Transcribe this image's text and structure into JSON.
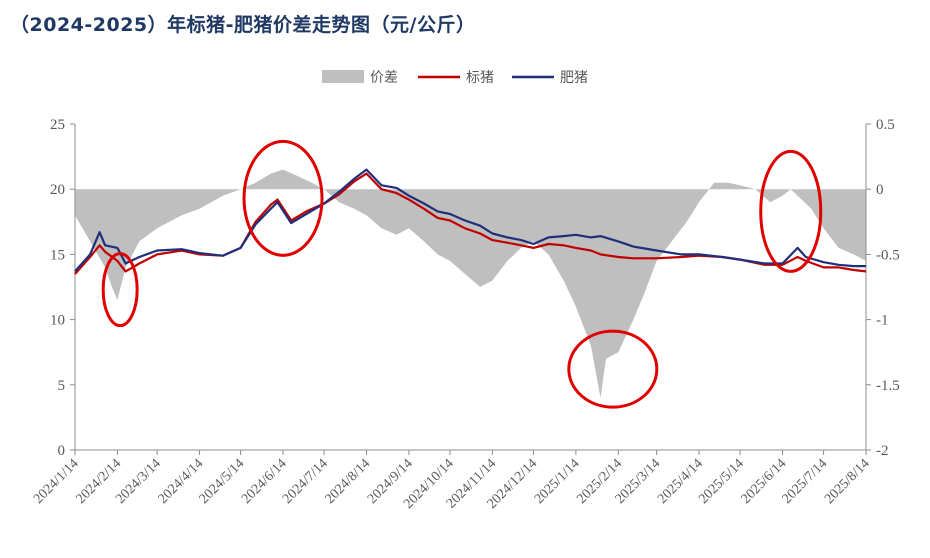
{
  "chart_data": {
    "type": "line",
    "title": "（2024-2025）年标猪-肥猪价差走势图（元/公斤）",
    "colors": {
      "price_diff": "#bfbfbf",
      "standard_pig": "#c00000",
      "fat_pig": "#1f2f7a",
      "highlight": "#e00000"
    },
    "legend": {
      "position": "top-center",
      "items": [
        "价差",
        "标猪",
        "肥猪"
      ]
    },
    "y_left": {
      "range": [
        0,
        25
      ],
      "ticks": [
        "0",
        "5",
        "10",
        "15",
        "20",
        "25"
      ]
    },
    "y_right": {
      "range": [
        -2,
        0.5
      ],
      "ticks": [
        "-2",
        "-1.5",
        "-1",
        "-0.5",
        "0",
        "0.5"
      ]
    },
    "x_ticks": [
      "2024/1/14",
      "2024/2/14",
      "2024/3/14",
      "2024/4/14",
      "2024/5/14",
      "2024/6/14",
      "2024/7/14",
      "2024/8/14",
      "2024/9/14",
      "2024/10/14",
      "2024/11/14",
      "2024/12/14",
      "2025/1/14",
      "2025/2/14",
      "2025/3/14",
      "2025/4/14",
      "2025/5/14",
      "2025/6/14",
      "2025/7/14",
      "2025/8/14"
    ],
    "series": [
      {
        "name": "价差",
        "axis": "right",
        "style": "area",
        "points": [
          [
            "2024/1/14",
            -0.2
          ],
          [
            "2024/1/25",
            -0.4
          ],
          [
            "2024/2/5",
            -0.6
          ],
          [
            "2024/2/10",
            -0.75
          ],
          [
            "2024/2/14",
            -0.85
          ],
          [
            "2024/2/20",
            -0.6
          ],
          [
            "2024/3/1",
            -0.4
          ],
          [
            "2024/3/14",
            -0.3
          ],
          [
            "2024/4/1",
            -0.2
          ],
          [
            "2024/4/14",
            -0.15
          ],
          [
            "2024/5/1",
            -0.05
          ],
          [
            "2024/5/14",
            0.0
          ],
          [
            "2024/5/25",
            0.05
          ],
          [
            "2024/6/5",
            0.12
          ],
          [
            "2024/6/14",
            0.15
          ],
          [
            "2024/6/25",
            0.1
          ],
          [
            "2024/7/5",
            0.05
          ],
          [
            "2024/7/14",
            0.0
          ],
          [
            "2024/7/25",
            -0.1
          ],
          [
            "2024/8/5",
            -0.15
          ],
          [
            "2024/8/14",
            -0.2
          ],
          [
            "2024/8/25",
            -0.3
          ],
          [
            "2024/9/5",
            -0.35
          ],
          [
            "2024/9/14",
            -0.3
          ],
          [
            "2024/9/25",
            -0.4
          ],
          [
            "2024/10/5",
            -0.5
          ],
          [
            "2024/10/14",
            -0.55
          ],
          [
            "2024/10/25",
            -0.65
          ],
          [
            "2024/11/5",
            -0.75
          ],
          [
            "2024/11/14",
            -0.7
          ],
          [
            "2024/11/25",
            -0.55
          ],
          [
            "2024/12/5",
            -0.45
          ],
          [
            "2024/12/14",
            -0.4
          ],
          [
            "2024/12/25",
            -0.5
          ],
          [
            "2025/1/5",
            -0.7
          ],
          [
            "2025/1/14",
            -0.9
          ],
          [
            "2025/1/25",
            -1.2
          ],
          [
            "2025/2/1",
            -1.6
          ],
          [
            "2025/2/5",
            -1.3
          ],
          [
            "2025/2/14",
            -1.25
          ],
          [
            "2025/2/25",
            -1.0
          ],
          [
            "2025/3/5",
            -0.8
          ],
          [
            "2025/3/14",
            -0.55
          ],
          [
            "2025/3/25",
            -0.4
          ],
          [
            "2025/4/5",
            -0.25
          ],
          [
            "2025/4/14",
            -0.1
          ],
          [
            "2025/4/25",
            0.05
          ],
          [
            "2025/5/5",
            0.05
          ],
          [
            "2025/5/14",
            0.03
          ],
          [
            "2025/5/25",
            0.0
          ],
          [
            "2025/6/5",
            -0.1
          ],
          [
            "2025/6/14",
            -0.05
          ],
          [
            "2025/6/20",
            0.0
          ],
          [
            "2025/6/25",
            -0.05
          ],
          [
            "2025/7/5",
            -0.15
          ],
          [
            "2025/7/14",
            -0.3
          ],
          [
            "2025/7/25",
            -0.45
          ],
          [
            "2025/8/5",
            -0.5
          ],
          [
            "2025/8/14",
            -0.55
          ]
        ]
      },
      {
        "name": "标猪",
        "axis": "left",
        "style": "line",
        "points": [
          [
            "2024/1/14",
            13.5
          ],
          [
            "2024/1/25",
            14.8
          ],
          [
            "2024/2/1",
            15.7
          ],
          [
            "2024/2/5",
            15.2
          ],
          [
            "2024/2/14",
            14.5
          ],
          [
            "2024/2/20",
            13.7
          ],
          [
            "2024/3/1",
            14.3
          ],
          [
            "2024/3/14",
            15.0
          ],
          [
            "2024/4/1",
            15.3
          ],
          [
            "2024/4/14",
            15.0
          ],
          [
            "2024/5/1",
            14.9
          ],
          [
            "2024/5/14",
            15.5
          ],
          [
            "2024/5/25",
            17.5
          ],
          [
            "2024/6/5",
            18.8
          ],
          [
            "2024/6/10",
            19.2
          ],
          [
            "2024/6/20",
            17.6
          ],
          [
            "2024/7/1",
            18.3
          ],
          [
            "2024/7/14",
            18.9
          ],
          [
            "2024/7/25",
            19.6
          ],
          [
            "2024/8/5",
            20.6
          ],
          [
            "2024/8/14",
            21.2
          ],
          [
            "2024/8/25",
            20.0
          ],
          [
            "2024/9/5",
            19.7
          ],
          [
            "2024/9/14",
            19.2
          ],
          [
            "2024/9/25",
            18.5
          ],
          [
            "2024/10/5",
            17.8
          ],
          [
            "2024/10/14",
            17.6
          ],
          [
            "2024/10/25",
            17.0
          ],
          [
            "2024/11/5",
            16.6
          ],
          [
            "2024/11/14",
            16.1
          ],
          [
            "2024/11/25",
            15.9
          ],
          [
            "2024/12/5",
            15.7
          ],
          [
            "2024/12/14",
            15.5
          ],
          [
            "2024/12/25",
            15.8
          ],
          [
            "2025/1/5",
            15.7
          ],
          [
            "2025/1/14",
            15.5
          ],
          [
            "2025/1/25",
            15.3
          ],
          [
            "2025/2/1",
            15.0
          ],
          [
            "2025/2/14",
            14.8
          ],
          [
            "2025/2/25",
            14.7
          ],
          [
            "2025/3/14",
            14.7
          ],
          [
            "2025/4/1",
            14.8
          ],
          [
            "2025/4/14",
            14.9
          ],
          [
            "2025/5/1",
            14.8
          ],
          [
            "2025/5/14",
            14.6
          ],
          [
            "2025/6/1",
            14.2
          ],
          [
            "2025/6/14",
            14.2
          ],
          [
            "2025/6/25",
            14.8
          ],
          [
            "2025/7/1",
            14.5
          ],
          [
            "2025/7/14",
            14.0
          ],
          [
            "2025/7/25",
            14.0
          ],
          [
            "2025/8/5",
            13.8
          ],
          [
            "2025/8/14",
            13.7
          ]
        ]
      },
      {
        "name": "肥猪",
        "axis": "left",
        "style": "line",
        "points": [
          [
            "2024/1/14",
            13.7
          ],
          [
            "2024/1/25",
            15.0
          ],
          [
            "2024/2/1",
            16.7
          ],
          [
            "2024/2/5",
            15.7
          ],
          [
            "2024/2/14",
            15.5
          ],
          [
            "2024/2/20",
            14.3
          ],
          [
            "2024/3/1",
            14.8
          ],
          [
            "2024/3/14",
            15.3
          ],
          [
            "2024/4/1",
            15.4
          ],
          [
            "2024/4/14",
            15.1
          ],
          [
            "2024/5/1",
            14.9
          ],
          [
            "2024/5/14",
            15.5
          ],
          [
            "2024/5/25",
            17.3
          ],
          [
            "2024/6/5",
            18.5
          ],
          [
            "2024/6/10",
            19.0
          ],
          [
            "2024/6/20",
            17.4
          ],
          [
            "2024/7/1",
            18.1
          ],
          [
            "2024/7/14",
            18.9
          ],
          [
            "2024/7/25",
            19.8
          ],
          [
            "2024/8/5",
            20.8
          ],
          [
            "2024/8/14",
            21.5
          ],
          [
            "2024/8/25",
            20.3
          ],
          [
            "2024/9/5",
            20.1
          ],
          [
            "2024/9/14",
            19.5
          ],
          [
            "2024/9/25",
            18.9
          ],
          [
            "2024/10/5",
            18.3
          ],
          [
            "2024/10/14",
            18.1
          ],
          [
            "2024/10/25",
            17.6
          ],
          [
            "2024/11/5",
            17.2
          ],
          [
            "2024/11/14",
            16.6
          ],
          [
            "2024/11/25",
            16.3
          ],
          [
            "2024/12/5",
            16.1
          ],
          [
            "2024/12/14",
            15.8
          ],
          [
            "2024/12/25",
            16.3
          ],
          [
            "2025/1/5",
            16.4
          ],
          [
            "2025/1/14",
            16.5
          ],
          [
            "2025/1/25",
            16.3
          ],
          [
            "2025/2/1",
            16.4
          ],
          [
            "2025/2/14",
            16.0
          ],
          [
            "2025/2/25",
            15.6
          ],
          [
            "2025/3/14",
            15.3
          ],
          [
            "2025/4/1",
            15.0
          ],
          [
            "2025/4/14",
            15.0
          ],
          [
            "2025/5/1",
            14.8
          ],
          [
            "2025/5/14",
            14.6
          ],
          [
            "2025/6/1",
            14.3
          ],
          [
            "2025/6/14",
            14.3
          ],
          [
            "2025/6/25",
            15.5
          ],
          [
            "2025/7/1",
            14.8
          ],
          [
            "2025/7/14",
            14.4
          ],
          [
            "2025/7/25",
            14.2
          ],
          [
            "2025/8/5",
            14.1
          ],
          [
            "2025/8/14",
            14.1
          ]
        ]
      }
    ],
    "annotations": [
      {
        "type": "ellipse",
        "center": [
          "2024/2/16",
          12.3
        ]
      },
      {
        "type": "ellipse",
        "center": [
          "2024/6/14",
          19.3
        ]
      },
      {
        "type": "ellipse",
        "center": [
          "2025/2/10",
          6.2
        ]
      },
      {
        "type": "ellipse",
        "center": [
          "2025/6/20",
          18.3
        ]
      }
    ]
  }
}
